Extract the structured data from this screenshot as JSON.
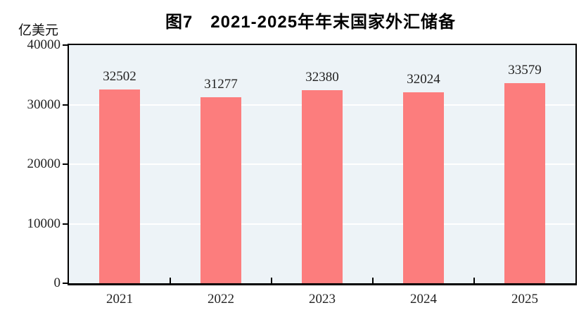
{
  "title": "图7　2021-2025年年末国家外汇储备",
  "unit_label": "亿美元",
  "chart_data": {
    "type": "bar",
    "title": "图7　2021-2025年年末国家外汇储备",
    "ylabel": "亿美元",
    "categories": [
      "2021",
      "2022",
      "2023",
      "2024",
      "2025"
    ],
    "values": [
      32502,
      31277,
      32380,
      32024,
      33579
    ],
    "ylim": [
      0,
      40000
    ],
    "yticks": [
      0,
      10000,
      20000,
      30000,
      40000
    ],
    "grid": "horizontal",
    "legend_position": "none",
    "colors": {
      "bar": "#FC7D7D",
      "plot_background": "#EDF3F7",
      "gridline": "#FFFFFF",
      "axis": "#000000",
      "text": "#222222",
      "page_background": "#FFFFFF"
    }
  }
}
